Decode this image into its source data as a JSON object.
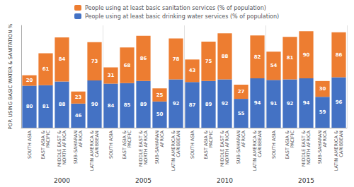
{
  "chart_data": {
    "type": "bar",
    "ylabel": "POP. USING BASIC WATER & SANITATION %",
    "categories": [
      "SOUTH ASIA",
      "EAST ASIA &\nPACIFIC",
      "MIDDLE EAST &\nNORTH AFRICA",
      "SUB-SAHARAN\nAFRICA",
      "LATIN AMERICA &\nCARIBBEAN",
      "SOUTH ASIA",
      "EAST ASIA &\nPACIFIC",
      "MIDDLE EAST &\nNORTH AFRICA",
      "SUB-SAHARAN\nAFRICA",
      "LATIN AMERICA &\nCARIBBEAN",
      "SOUTH ASIA",
      "EAST ASIA &\nPACIFIC",
      "MIDDLE EAST &\nNORTH AFRICA",
      "SUB-SAHARAN\nAFRICA",
      "LATIN AMERICA &\nCARIBBEAN",
      "SOUTH ASIA",
      "EAST ASIA &\nPACIFIC",
      "MIDDLE EAST &\nNORTH AFRICA",
      "SUB-SAHARAN\nAFRICA",
      "LATIN AMERICA &\nCARIBBEAN"
    ],
    "annotations": [
      "2000",
      "2005",
      "2010",
      "2015"
    ],
    "series": [
      {
        "name": "People using at least basic drinking water services (% of population)",
        "color": "#4472C4",
        "values": [
          80,
          81,
          88,
          46,
          90,
          84,
          85,
          89,
          50,
          92,
          87,
          89,
          92,
          55,
          94,
          91,
          92,
          94,
          59,
          96
        ]
      },
      {
        "name": "People using at least basic sanitation services (% of population)",
        "color": "#ED7D31",
        "values": [
          20,
          61,
          84,
          23,
          73,
          31,
          68,
          86,
          25,
          78,
          43,
          75,
          88,
          27,
          82,
          54,
          81,
          90,
          30,
          86
        ]
      }
    ],
    "ylim": [
      0,
      195
    ],
    "yticks": [],
    "tick_labels": "x",
    "stacked": true,
    "data_labels": true,
    "grid": false,
    "legend": "upper left"
  }
}
